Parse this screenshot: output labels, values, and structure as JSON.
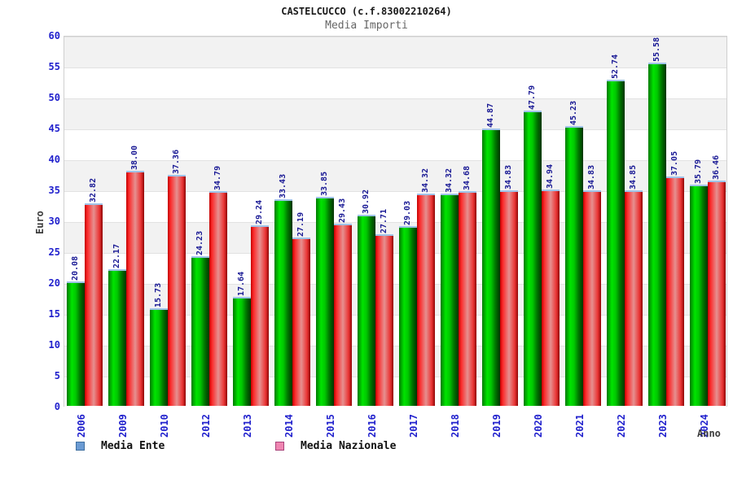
{
  "header": {
    "title": "CASTELCUCCO (c.f.83002210264)",
    "subtitle": "Media Importi"
  },
  "axes": {
    "ylabel": "Euro",
    "xlabel": "Anno"
  },
  "legend": {
    "items": [
      {
        "label": "Media Ente",
        "swatch_fill": "#6b9bd3",
        "swatch_border": "#3f6fa0"
      },
      {
        "label": "Media Nazionale",
        "swatch_fill": "#ef85b1",
        "swatch_border": "#a8437a"
      }
    ]
  },
  "colors": {
    "bar_green": "#00cc00",
    "bar_red": "#ee3333",
    "bar_top_cap": "#9fc3e8",
    "tick_label_blue": "#2121cd",
    "value_label_navy": "#181894",
    "band_gray": "#f2f2f2",
    "band_white": "#ffffff",
    "axis_title_gray": "#3c3c3c"
  },
  "chart_data": {
    "type": "bar",
    "title": "CASTELCUCCO (c.f.83002210264)",
    "subtitle": "Media Importi",
    "xlabel": "Anno",
    "ylabel": "Euro",
    "ylim": [
      0,
      60
    ],
    "ytick_step": 5,
    "grid": "horizontal-bands-alternating",
    "legend_position": "bottom-left",
    "bar_labels": "values rotated 90deg above each bar",
    "categories": [
      "2006",
      "2009",
      "2010",
      "2012",
      "2013",
      "2014",
      "2015",
      "2016",
      "2017",
      "2018",
      "2019",
      "2020",
      "2021",
      "2022",
      "2023",
      "2024"
    ],
    "series": [
      {
        "name": "Media Ente",
        "bar_color": "green",
        "values": [
          20.08,
          22.17,
          15.73,
          24.23,
          17.64,
          33.43,
          33.85,
          30.92,
          29.03,
          34.32,
          44.87,
          47.79,
          45.23,
          52.74,
          55.58,
          35.79
        ]
      },
      {
        "name": "Media Nazionale",
        "bar_color": "red",
        "values": [
          32.82,
          38.0,
          37.36,
          34.79,
          29.24,
          27.19,
          29.43,
          27.71,
          34.32,
          34.68,
          34.83,
          34.94,
          34.83,
          34.85,
          37.05,
          36.46
        ]
      }
    ]
  }
}
